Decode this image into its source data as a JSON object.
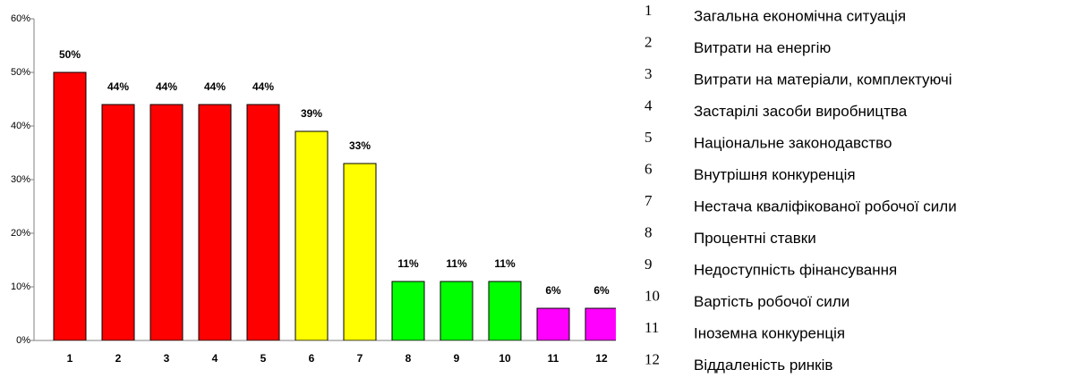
{
  "chart_data": {
    "type": "bar",
    "categories": [
      "1",
      "2",
      "3",
      "4",
      "5",
      "6",
      "7",
      "8",
      "9",
      "10",
      "11",
      "12"
    ],
    "values": [
      50,
      44,
      44,
      44,
      44,
      39,
      33,
      11,
      11,
      11,
      6,
      6
    ],
    "value_labels": [
      "50%",
      "44%",
      "44%",
      "44%",
      "44%",
      "39%",
      "33%",
      "11%",
      "11%",
      "11%",
      "6%",
      "6%"
    ],
    "colors": [
      "#ff0000",
      "#ff0000",
      "#ff0000",
      "#ff0000",
      "#ff0000",
      "#ffff00",
      "#ffff00",
      "#00ff00",
      "#00ff00",
      "#00ff00",
      "#ff00ff",
      "#ff00ff"
    ],
    "ylim": [
      0,
      60
    ],
    "yticks": [
      {
        "value": 0,
        "label": "0%"
      },
      {
        "value": 10,
        "label": "10%"
      },
      {
        "value": 20,
        "label": "20%"
      },
      {
        "value": 30,
        "label": "30%"
      },
      {
        "value": 40,
        "label": "40%"
      },
      {
        "value": 50,
        "label": "50%"
      },
      {
        "value": 60,
        "label": "60%"
      }
    ],
    "category_descriptions": [
      "Загальна економічна ситуація",
      "Витрати на енергію",
      "Витрати на матеріали, комплектуючі",
      "Застарілі засоби виробництва",
      "Національне законодавство",
      "Внутрішня конкуренція",
      "Нестача кваліфікованої робочої сили",
      "Процентні ставки",
      "Недоступність фінансування",
      "Вартість робочої сили",
      "Іноземна конкуренція",
      "Віддаленість ринків"
    ]
  }
}
